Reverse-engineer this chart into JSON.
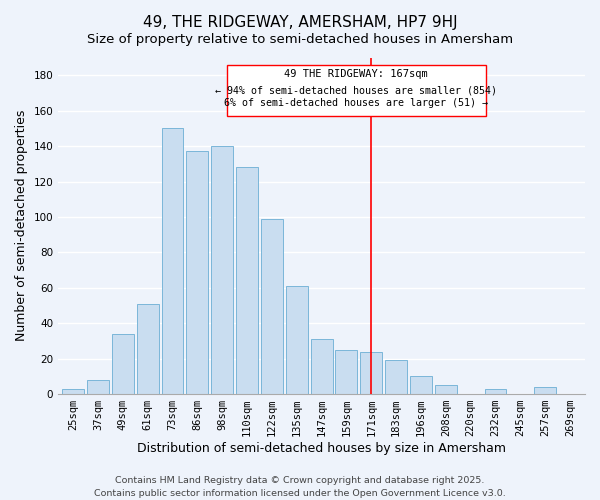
{
  "title": "49, THE RIDGEWAY, AMERSHAM, HP7 9HJ",
  "subtitle": "Size of property relative to semi-detached houses in Amersham",
  "xlabel": "Distribution of semi-detached houses by size in Amersham",
  "ylabel": "Number of semi-detached properties",
  "bar_labels": [
    "25sqm",
    "37sqm",
    "49sqm",
    "61sqm",
    "73sqm",
    "86sqm",
    "98sqm",
    "110sqm",
    "122sqm",
    "135sqm",
    "147sqm",
    "159sqm",
    "171sqm",
    "183sqm",
    "196sqm",
    "208sqm",
    "220sqm",
    "232sqm",
    "245sqm",
    "257sqm",
    "269sqm"
  ],
  "bar_values": [
    3,
    8,
    34,
    51,
    150,
    137,
    140,
    128,
    99,
    61,
    31,
    25,
    24,
    19,
    10,
    5,
    0,
    3,
    0,
    4,
    0
  ],
  "bar_color": "#c9ddf0",
  "bar_edge_color": "#7ab6d9",
  "ylim": [
    0,
    190
  ],
  "yticks": [
    0,
    20,
    40,
    60,
    80,
    100,
    120,
    140,
    160,
    180
  ],
  "vline_color": "red",
  "vline_index": 12,
  "annotation_title": "49 THE RIDGEWAY: 167sqm",
  "annotation_line1": "← 94% of semi-detached houses are smaller (854)",
  "annotation_line2": "6% of semi-detached houses are larger (51) →",
  "footer1": "Contains HM Land Registry data © Crown copyright and database right 2025.",
  "footer2": "Contains public sector information licensed under the Open Government Licence v3.0.",
  "background_color": "#eef3fb",
  "grid_color": "#ffffff",
  "title_fontsize": 11,
  "subtitle_fontsize": 9.5,
  "axis_label_fontsize": 9,
  "tick_fontsize": 7.5,
  "footer_fontsize": 6.8,
  "ann_title_fontsize": 7.5,
  "ann_text_fontsize": 7.2
}
